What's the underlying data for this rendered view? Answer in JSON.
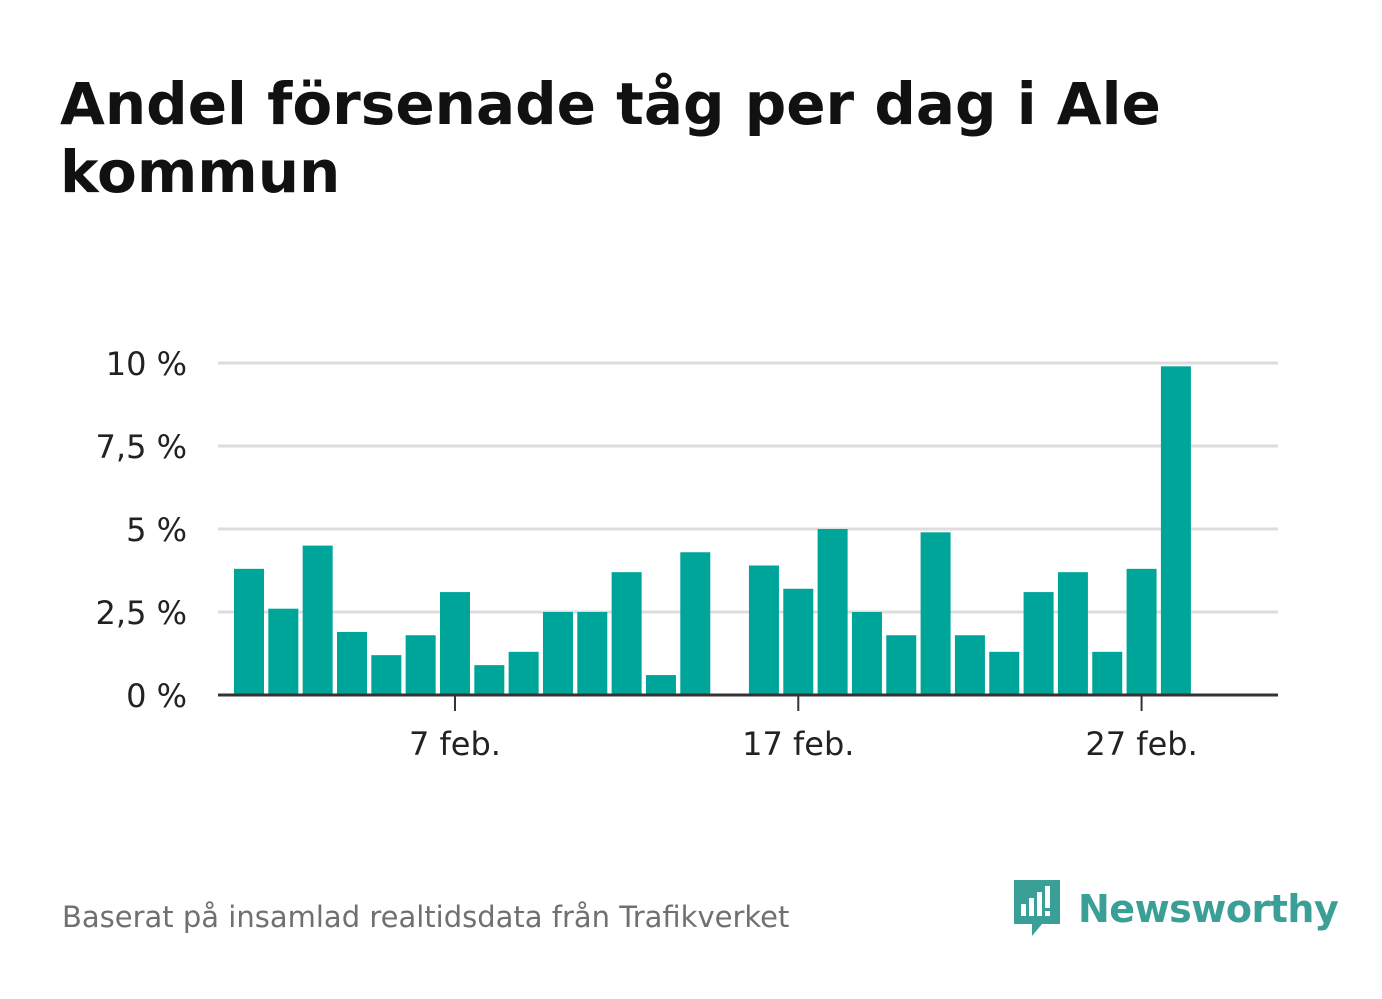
{
  "title": "Andel försenade tåg per dag i Ale kommun",
  "source": "Baserat på insamlad realtidsdata från Trafikverket",
  "brand": {
    "name": "Newsworthy",
    "icon": "newsworthy-logo-icon",
    "color": "#3a9f96"
  },
  "colors": {
    "bar": "#00a59a",
    "grid": "#dddddd",
    "axis": "#333333"
  },
  "chart_data": {
    "type": "bar",
    "title": "Andel försenade tåg per dag i Ale kommun",
    "xlabel": "",
    "ylabel": "",
    "x_range": [
      "2022-01-31",
      "2022-03-01"
    ],
    "ylim": [
      0,
      10
    ],
    "y_ticks": [
      {
        "value": 0,
        "label": "0 %"
      },
      {
        "value": 2.5,
        "label": "2,5 %"
      },
      {
        "value": 5,
        "label": "5 %"
      },
      {
        "value": 7.5,
        "label": "7,5 %"
      },
      {
        "value": 10,
        "label": "10 %"
      }
    ],
    "x_ticks": [
      {
        "date": "2022-02-07",
        "label": "7 feb."
      },
      {
        "date": "2022-02-17",
        "label": "17 feb."
      },
      {
        "date": "2022-02-27",
        "label": "27 feb."
      }
    ],
    "grid": true,
    "legend": "none",
    "dates": [
      "2022-02-01",
      "2022-02-02",
      "2022-02-03",
      "2022-02-04",
      "2022-02-05",
      "2022-02-06",
      "2022-02-07",
      "2022-02-08",
      "2022-02-09",
      "2022-02-10",
      "2022-02-11",
      "2022-02-12",
      "2022-02-13",
      "2022-02-14",
      "2022-02-15",
      "2022-02-16",
      "2022-02-17",
      "2022-02-18",
      "2022-02-19",
      "2022-02-20",
      "2022-02-21",
      "2022-02-22",
      "2022-02-23",
      "2022-02-24",
      "2022-02-25",
      "2022-02-26",
      "2022-02-27",
      "2022-02-28"
    ],
    "values": [
      3.8,
      2.6,
      4.5,
      1.9,
      1.2,
      1.8,
      3.1,
      0.9,
      1.3,
      2.5,
      2.5,
      3.7,
      0.6,
      4.3,
      null,
      3.9,
      3.2,
      5.0,
      2.5,
      1.8,
      4.9,
      1.8,
      1.3,
      3.1,
      3.7,
      1.3,
      3.8,
      9.9
    ]
  }
}
